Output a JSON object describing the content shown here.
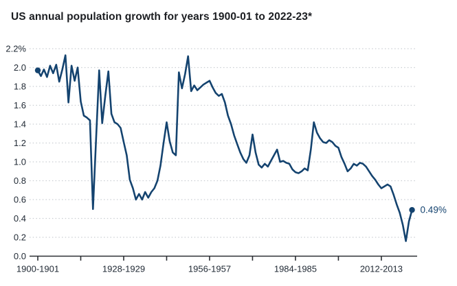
{
  "chart_data": {
    "type": "line",
    "title": "US annual population growth for years 1900-01 to 2022-23*",
    "x_axis": {
      "tick_labels": [
        "1900-1901",
        "1928-1929",
        "1956-1957",
        "1984-1985",
        "2012-2013"
      ],
      "tick_start_years": [
        1900,
        1928,
        1956,
        1984,
        2012
      ],
      "minor_tick_start_years": [
        1914,
        1942,
        1970,
        1998
      ],
      "range_first_period": "1900-01",
      "range_last_period": "2022-23"
    },
    "y_axis": {
      "unit": "%",
      "min": 0.0,
      "max": 2.2,
      "tick_values": [
        2.2,
        2.0,
        1.8,
        1.6,
        1.4,
        1.2,
        1.0,
        0.8,
        0.6,
        0.4,
        0.2,
        0.0
      ],
      "tick_labels": [
        "2.2%",
        "2.0",
        "1.8",
        "1.6",
        "1.4",
        "1.2",
        "1.0",
        "0.8",
        "0.6",
        "0.4",
        "0.2",
        "0.0"
      ]
    },
    "grid": "horizontal-dotted",
    "legend": "none",
    "series": [
      {
        "name": "US annual population growth",
        "first_period": "1900-01",
        "last_period": "2022-23",
        "first_end_year": 1901,
        "values": [
          1.97,
          1.91,
          1.98,
          1.9,
          2.02,
          1.94,
          2.03,
          1.85,
          1.98,
          2.13,
          1.63,
          2.02,
          1.86,
          2.0,
          1.64,
          1.49,
          1.47,
          1.44,
          0.5,
          1.24,
          1.97,
          1.41,
          1.7,
          1.96,
          1.51,
          1.42,
          1.4,
          1.36,
          1.21,
          1.07,
          0.81,
          0.72,
          0.6,
          0.66,
          0.6,
          0.68,
          0.62,
          0.68,
          0.72,
          0.8,
          0.96,
          1.2,
          1.42,
          1.22,
          1.1,
          1.07,
          1.95,
          1.78,
          1.93,
          2.12,
          1.75,
          1.81,
          1.76,
          1.79,
          1.82,
          1.84,
          1.86,
          1.79,
          1.73,
          1.7,
          1.72,
          1.63,
          1.49,
          1.4,
          1.28,
          1.19,
          1.1,
          1.03,
          0.99,
          1.07,
          1.29,
          1.1,
          0.97,
          0.94,
          0.98,
          0.95,
          1.01,
          1.07,
          1.13,
          1.0,
          1.01,
          0.99,
          0.98,
          0.92,
          0.89,
          0.88,
          0.9,
          0.93,
          0.91,
          1.13,
          1.42,
          1.31,
          1.25,
          1.21,
          1.2,
          1.23,
          1.21,
          1.17,
          1.15,
          1.05,
          0.98,
          0.9,
          0.93,
          0.98,
          0.96,
          0.99,
          0.98,
          0.95,
          0.9,
          0.85,
          0.81,
          0.76,
          0.72,
          0.74,
          0.76,
          0.74,
          0.65,
          0.55,
          0.46,
          0.33,
          0.16,
          0.37,
          0.49
        ]
      }
    ],
    "annotations": {
      "start_point_value": 1.97,
      "end_point_value": 0.49,
      "end_value_label": "0.49%"
    },
    "colors": {
      "line": "#14436F",
      "end_label": "#14436F",
      "title_text": "#1B1D21",
      "axis_text": "#222B36",
      "axis_line": "#2B2F33",
      "gridline": "#C9CDD2",
      "background": "#FFFFFF"
    }
  }
}
